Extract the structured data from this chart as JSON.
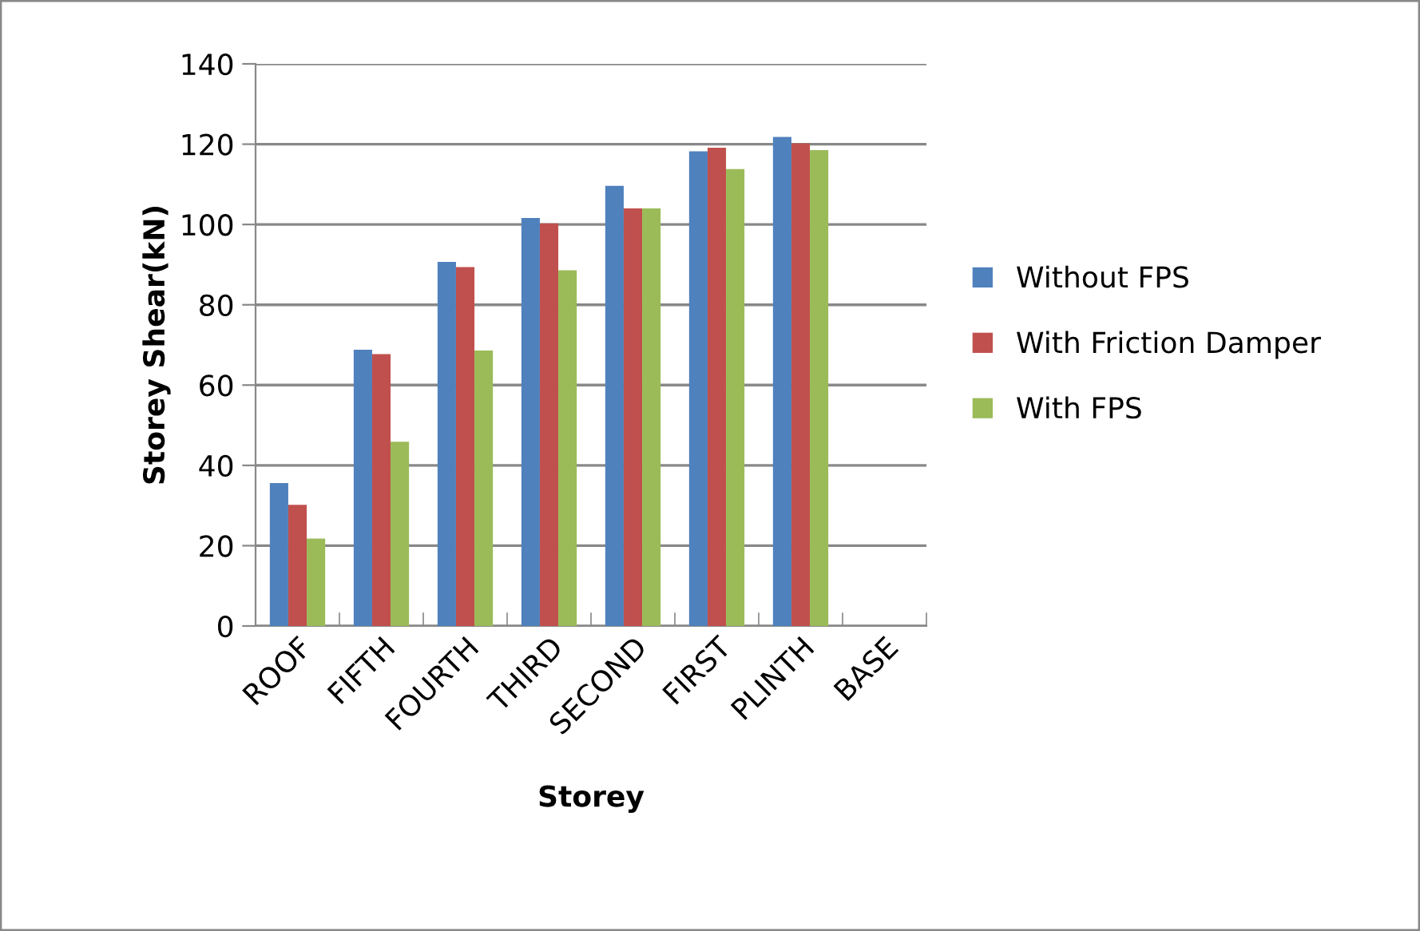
{
  "chart_data": {
    "type": "bar",
    "xlabel": "Storey",
    "ylabel": "Storey Shear(kN)",
    "categories": [
      "ROOF",
      "FIFTH",
      "FOURTH",
      "THIRD",
      "SECOND",
      "FIRST",
      "PLINTH",
      "BASE"
    ],
    "series": [
      {
        "name": "Without FPS",
        "color": "#4f81bd",
        "values": [
          35.6,
          68.8,
          90.7,
          101.6,
          109.6,
          118.2,
          121.8,
          null
        ]
      },
      {
        "name": "With Friction Damper",
        "color": "#c0504d",
        "values": [
          30.2,
          67.7,
          89.4,
          100.3,
          104,
          119.1,
          120.2,
          null
        ]
      },
      {
        "name": "With FPS",
        "color": "#9bbb59",
        "values": [
          21.8,
          45.9,
          68.6,
          88.6,
          104,
          113.8,
          118.5,
          null
        ]
      }
    ],
    "ylim": [
      0,
      140
    ],
    "yticks": [
      0,
      20,
      40,
      60,
      80,
      100,
      120,
      140
    ],
    "grid": "y",
    "legend": "right"
  }
}
